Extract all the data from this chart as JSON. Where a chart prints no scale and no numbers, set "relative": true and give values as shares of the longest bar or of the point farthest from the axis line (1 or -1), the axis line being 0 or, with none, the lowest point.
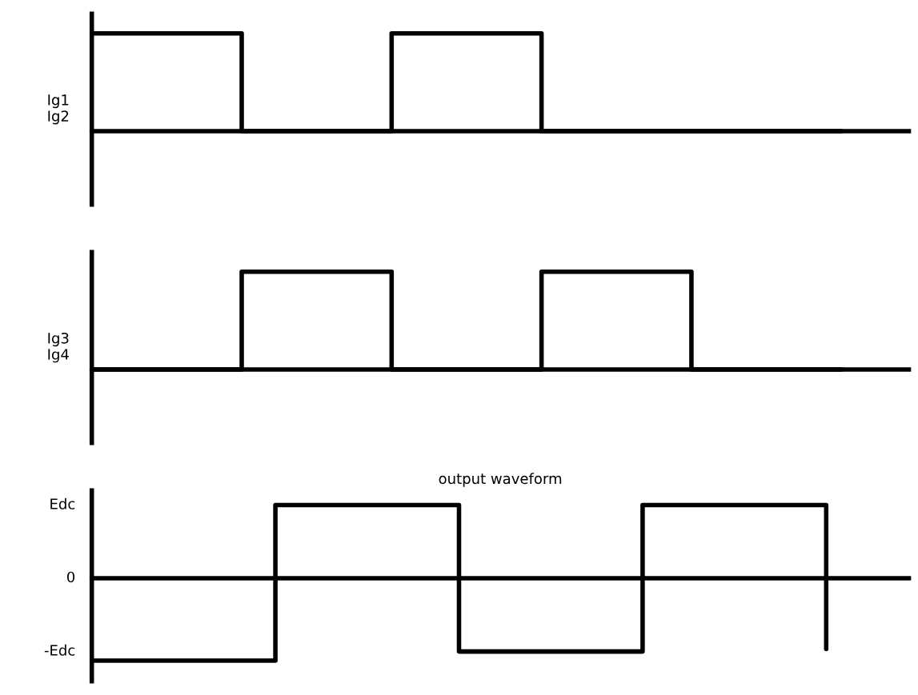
{
  "chart_data": [
    {
      "type": "step",
      "relative": true,
      "ylabel": "Ig1\nIg2",
      "categories": [
        null,
        null,
        null,
        null,
        null,
        null
      ],
      "series": [
        {
          "color": "#000000",
          "values": [
            1,
            0,
            1,
            0,
            0,
            0
          ]
        }
      ]
    },
    {
      "type": "step",
      "relative": true,
      "ylabel": "Ig3\nIg4",
      "categories": [
        null,
        null,
        null,
        null,
        null,
        null
      ],
      "series": [
        {
          "color": "#000000",
          "values": [
            0,
            1,
            0,
            1,
            0,
            0
          ]
        }
      ]
    },
    {
      "type": "step",
      "relative": true,
      "title": "output waveform",
      "categories": [
        null,
        null,
        null,
        null,
        null
      ],
      "annotations": [
        "Edc",
        "0",
        "-Edc"
      ],
      "series": [
        {
          "color": "#000000",
          "values": [
            -1,
            0.89,
            -0.89,
            0.89,
            -0.86
          ]
        }
      ]
    }
  ]
}
